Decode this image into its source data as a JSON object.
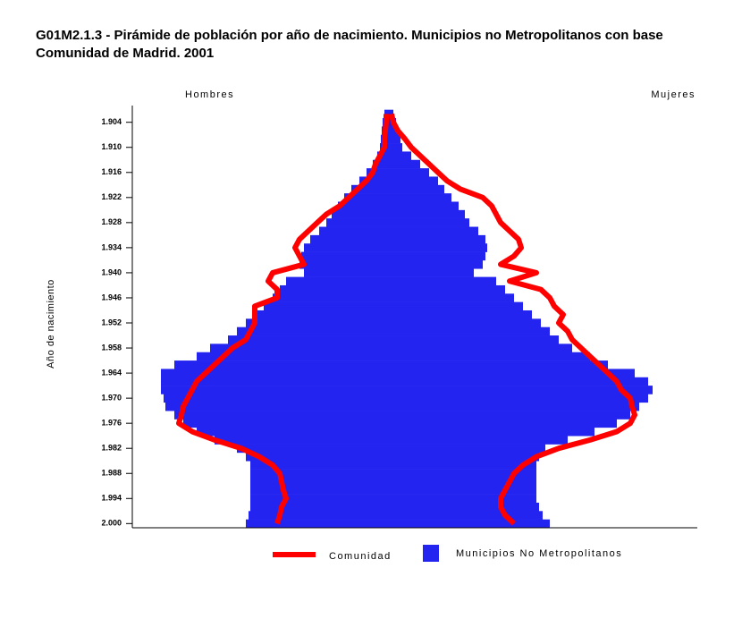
{
  "chart_data": {
    "type": "population-pyramid",
    "title": [
      "G01M2.1.3  - Pirámide de población por año de nacimiento. Municipios no Metropolitanos  con base",
      "Comunidad de Madrid. 2001"
    ],
    "left_label": "Hombres",
    "right_label": "Mujeres",
    "y_label": "Año de nacimiento",
    "y": [
      1902,
      1904,
      1906,
      1908,
      1910,
      1912,
      1914,
      1916,
      1918,
      1920,
      1922,
      1924,
      1926,
      1928,
      1930,
      1932,
      1934,
      1936,
      1938,
      1940,
      1942,
      1944,
      1946,
      1948,
      1950,
      1952,
      1954,
      1956,
      1958,
      1960,
      1962,
      1964,
      1966,
      1968,
      1970,
      1972,
      1974,
      1976,
      1978,
      1980,
      1982,
      1984,
      1986,
      1988,
      1990,
      1992,
      1994,
      1996,
      1998,
      2000
    ],
    "ylim": [
      1900,
      2001
    ],
    "yticks": [
      {
        "value": 1904,
        "label": "1.904"
      },
      {
        "value": 1910,
        "label": "1.910"
      },
      {
        "value": 1916,
        "label": "1.916"
      },
      {
        "value": 1922,
        "label": "1.922"
      },
      {
        "value": 1928,
        "label": "1.928"
      },
      {
        "value": 1934,
        "label": "1.934"
      },
      {
        "value": 1940,
        "label": "1.940"
      },
      {
        "value": 1946,
        "label": "1.946"
      },
      {
        "value": 1952,
        "label": "1.952"
      },
      {
        "value": 1958,
        "label": "1.958"
      },
      {
        "value": 1964,
        "label": "1.964"
      },
      {
        "value": 1970,
        "label": "1.970"
      },
      {
        "value": 1976,
        "label": "1.976"
      },
      {
        "value": 1982,
        "label": "1.982"
      },
      {
        "value": 1988,
        "label": "1.988"
      },
      {
        "value": 1994,
        "label": "1.994"
      },
      {
        "value": 2000,
        "label": "2.000"
      }
    ],
    "xlim": [
      -2.87,
      3.45
    ],
    "series": [
      {
        "name": "Municipios No Metropolitanos",
        "color": "#2424f0",
        "style": "bars",
        "hombres": [
          -0.05,
          -0.07,
          -0.08,
          -0.09,
          -0.1,
          -0.13,
          -0.18,
          -0.25,
          -0.33,
          -0.42,
          -0.5,
          -0.57,
          -0.64,
          -0.7,
          -0.78,
          -0.88,
          -0.95,
          -0.98,
          -1.0,
          -0.95,
          -1.15,
          -1.22,
          -1.3,
          -1.4,
          -1.5,
          -1.6,
          -1.7,
          -1.8,
          -2.0,
          -2.15,
          -2.4,
          -2.55,
          -2.55,
          -2.55,
          -2.52,
          -2.5,
          -2.4,
          -2.3,
          -2.15,
          -1.95,
          -1.7,
          -1.6,
          -1.55,
          -1.55,
          -1.55,
          -1.55,
          -1.55,
          -1.55,
          -1.57,
          -1.6
        ],
        "mujeres": [
          0.05,
          0.08,
          0.1,
          0.13,
          0.15,
          0.25,
          0.35,
          0.45,
          0.55,
          0.62,
          0.7,
          0.78,
          0.85,
          0.9,
          1.0,
          1.08,
          1.1,
          1.08,
          1.05,
          0.95,
          1.2,
          1.3,
          1.4,
          1.5,
          1.6,
          1.7,
          1.8,
          1.9,
          2.05,
          2.25,
          2.45,
          2.75,
          2.9,
          2.95,
          2.9,
          2.8,
          2.7,
          2.55,
          2.3,
          2.0,
          1.75,
          1.68,
          1.65,
          1.65,
          1.65,
          1.65,
          1.65,
          1.68,
          1.72,
          1.8
        ]
      },
      {
        "name": "Comunidad",
        "color": "#ff0000",
        "style": "line",
        "hombres": [
          -0.03,
          -0.03,
          -0.04,
          -0.05,
          -0.05,
          -0.1,
          -0.15,
          -0.18,
          -0.25,
          -0.35,
          -0.45,
          -0.55,
          -0.7,
          -0.8,
          -0.9,
          -1.0,
          -1.05,
          -1.0,
          -0.95,
          -1.3,
          -1.35,
          -1.25,
          -1.25,
          -1.5,
          -1.5,
          -1.5,
          -1.55,
          -1.6,
          -1.75,
          -1.85,
          -1.95,
          -2.05,
          -2.15,
          -2.2,
          -2.25,
          -2.3,
          -2.32,
          -2.35,
          -2.2,
          -1.95,
          -1.65,
          -1.45,
          -1.3,
          -1.22,
          -1.2,
          -1.18,
          -1.15,
          -1.2,
          -1.22,
          -1.25
        ],
        "mujeres": [
          0.03,
          0.05,
          0.1,
          0.18,
          0.25,
          0.35,
          0.45,
          0.55,
          0.65,
          0.8,
          1.05,
          1.15,
          1.2,
          1.25,
          1.35,
          1.45,
          1.48,
          1.4,
          1.25,
          1.65,
          1.35,
          1.7,
          1.8,
          1.85,
          1.95,
          1.9,
          2.0,
          2.05,
          2.15,
          2.25,
          2.35,
          2.45,
          2.55,
          2.6,
          2.7,
          2.72,
          2.75,
          2.7,
          2.55,
          2.25,
          1.9,
          1.65,
          1.5,
          1.4,
          1.35,
          1.3,
          1.25,
          1.25,
          1.3,
          1.4
        ]
      }
    ]
  }
}
